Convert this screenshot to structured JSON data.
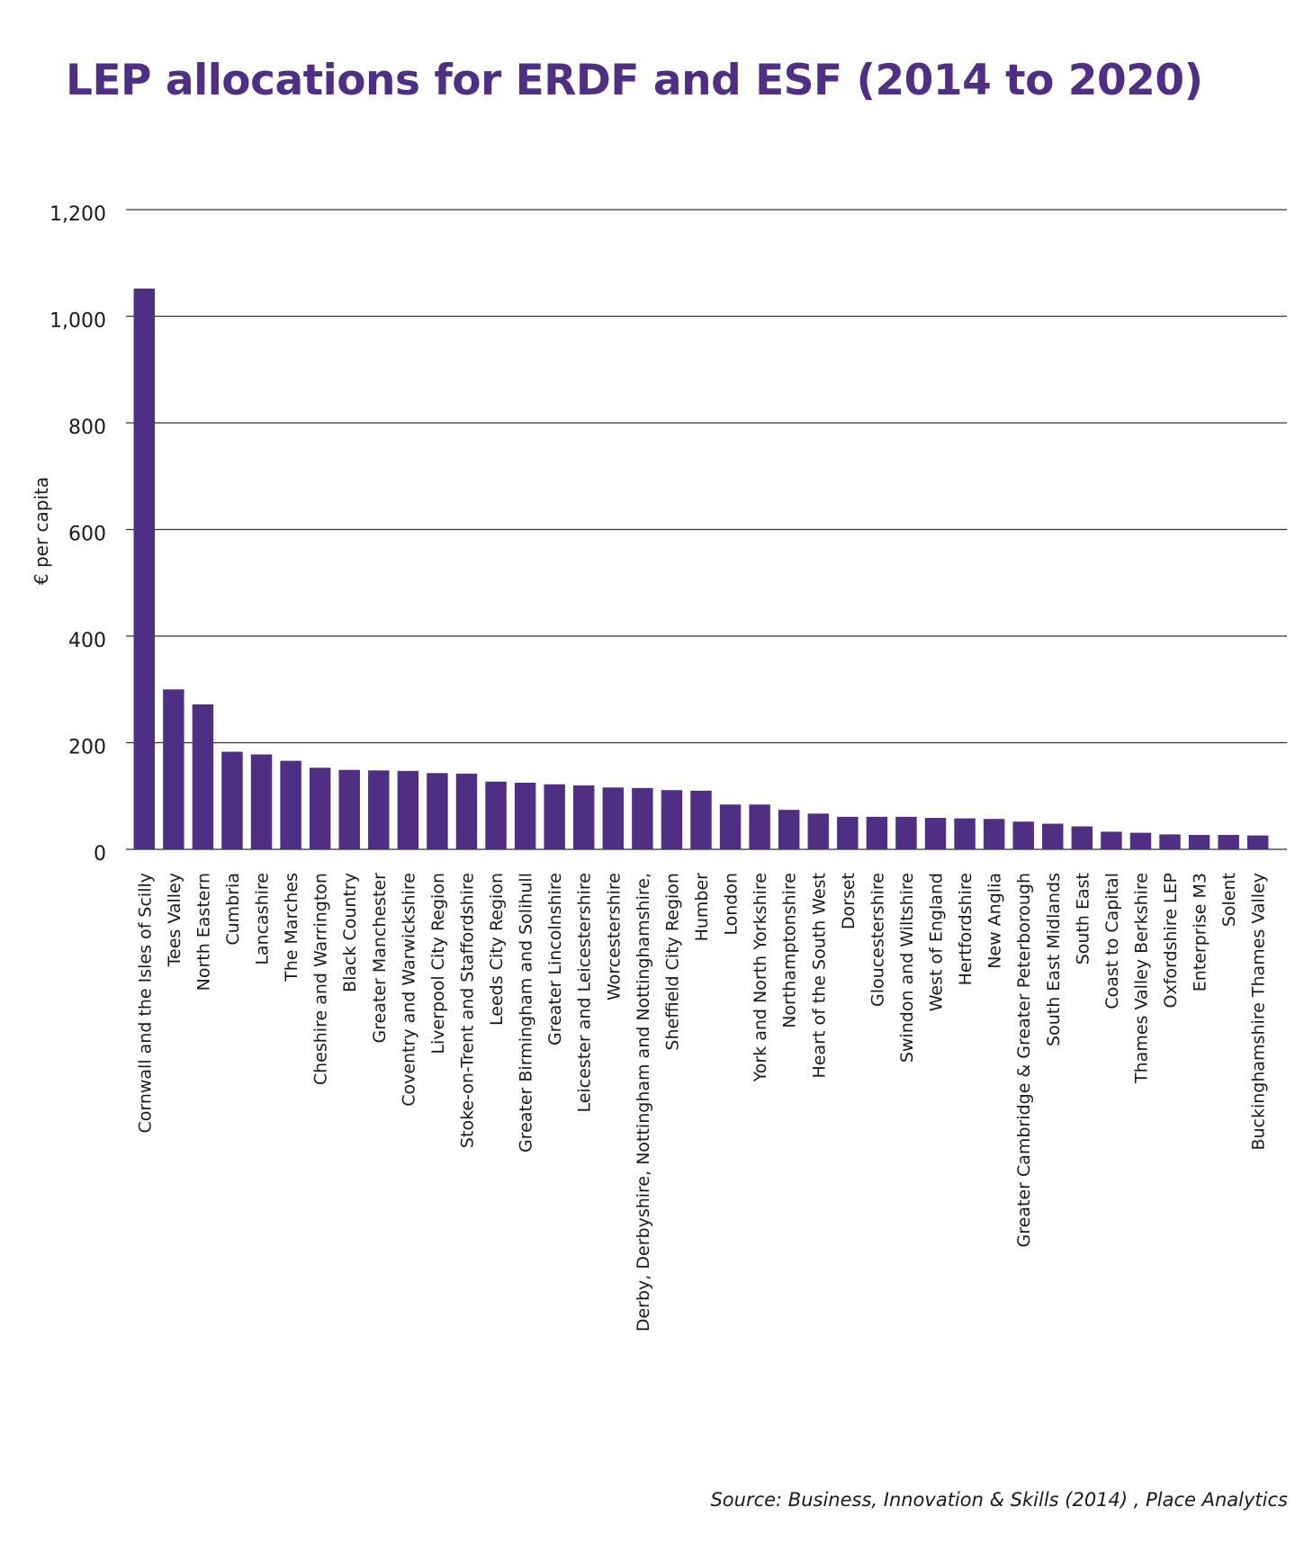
{
  "chart_data": {
    "type": "bar",
    "title": "LEP allocations for ERDF and ESF (2014 to 2020)",
    "ylabel": "€ per capita",
    "xlabel": "",
    "ylim": [
      0,
      1200
    ],
    "yticks": [
      0,
      200,
      400,
      600,
      800,
      1000,
      1200
    ],
    "ytick_labels": [
      "0",
      "200",
      "400",
      "600",
      "800",
      "1,000",
      "1,200"
    ],
    "grid": true,
    "bar_color": "#4e2f84",
    "categories": [
      "Cornwall and the Isles of Scilly",
      "Tees Valley",
      "North Eastern",
      "Cumbria",
      "Lancashire",
      "The Marches",
      "Cheshire and Warrington",
      "Black Country",
      "Greater Manchester",
      "Coventry and Warwickshire",
      "Liverpool City Region",
      "Stoke-on-Trent and Staffordshire",
      "Leeds City Region",
      "Greater Birmingham and Solihull",
      "Greater Lincolnshire",
      "Leicester and Leicestershire",
      "Worcestershire",
      "Derby, Derbyshire, Nottingham and Nottinghamshire,",
      "Sheffield City Region",
      "Humber",
      "London",
      "York and North Yorkshire",
      "Northamptonshire",
      "Heart of the South West",
      "Dorset",
      "Gloucestershire",
      "Swindon and Wiltshire",
      "West of England",
      "Hertfordshire",
      "New Anglia",
      "Greater Cambridge & Greater Peterborough",
      "South East Midlands",
      "South East",
      "Coast to Capital",
      "Thames Valley Berkshire",
      "Oxfordshire LEP",
      "Enterprise M3",
      "Solent",
      "Buckinghamshire Thames Valley"
    ],
    "values": [
      1052,
      300,
      272,
      183,
      178,
      166,
      153,
      149,
      148,
      147,
      143,
      142,
      127,
      125,
      122,
      120,
      116,
      115,
      111,
      110,
      84,
      84,
      74,
      67,
      61,
      61,
      61,
      59,
      58,
      57,
      52,
      48,
      43,
      33,
      31,
      28,
      27,
      27,
      26
    ]
  },
  "source": "Source: Business, Innovation & Skills (2014) , Place Analytics"
}
